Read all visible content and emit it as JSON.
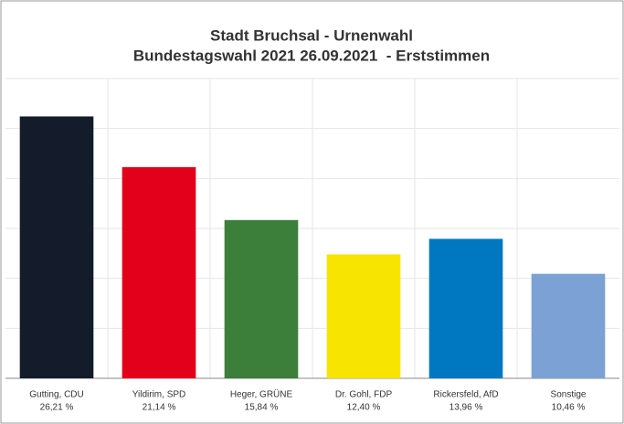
{
  "chart_data": {
    "type": "bar",
    "title": "Stadt Bruchsal - Urnenwahl",
    "subtitle": "Bundestagswahl 2021 26.09.2021  - Erststimmen",
    "categories": [
      "Gutting, CDU",
      "Yildirim, SPD",
      "Heger, GRÜNE",
      "Dr. Gohl, FDP",
      "Rickersfeld, AfD",
      "Sonstige"
    ],
    "values": [
      26.21,
      21.14,
      15.84,
      12.4,
      13.96,
      10.46
    ],
    "value_labels": [
      "26,21 %",
      "21,14 %",
      "15,84 %",
      "12,40 %",
      "13,96 %",
      "10,46 %"
    ],
    "colors": [
      "#141c2b",
      "#e2001a",
      "#3b7f3b",
      "#f7e400",
      "#0078c1",
      "#7ca1d5"
    ],
    "ylim": [
      0,
      30
    ],
    "yticks": [
      0,
      5,
      10,
      15,
      20,
      25,
      30
    ],
    "grid": true
  }
}
